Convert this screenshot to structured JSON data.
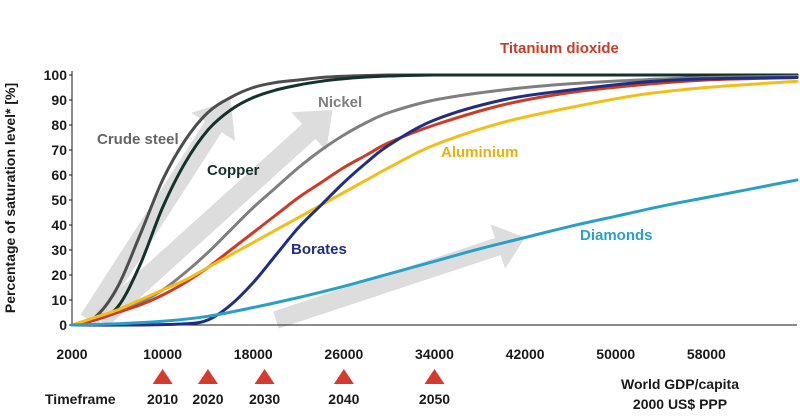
{
  "chart_data": {
    "type": "line",
    "ylabel": "Percentage of saturation level* [%]",
    "xlabel_line1": "World GDP/capita",
    "xlabel_line2": "2000 US$ PPP",
    "xlim": [
      2000,
      66000
    ],
    "ylim": [
      0,
      100
    ],
    "x_ticks": [
      2000,
      10000,
      18000,
      26000,
      34000,
      42000,
      50000,
      58000
    ],
    "y_ticks": [
      0,
      10,
      20,
      30,
      40,
      50,
      60,
      70,
      80,
      90,
      100
    ],
    "grid": false,
    "timeframe": {
      "label": "Timeframe",
      "marks": [
        {
          "year": "2010",
          "gdp": 10000
        },
        {
          "year": "2020",
          "gdp": 14000
        },
        {
          "year": "2030",
          "gdp": 19000
        },
        {
          "year": "2040",
          "gdp": 26000
        },
        {
          "year": "2050",
          "gdp": 34000
        }
      ],
      "marker_color": "#d63a2e"
    },
    "arrow_color": "#d9d9d9",
    "series": [
      {
        "name": "Crude steel",
        "color": "#4d4d4d",
        "label_color": "#666666",
        "x": [
          2000,
          4000,
          6000,
          8000,
          10000,
          12000,
          14000,
          16000,
          18000,
          20000,
          22000,
          24000,
          26000,
          28000,
          30000,
          34000,
          40000,
          50000,
          66000
        ],
        "y": [
          0,
          3,
          15,
          36,
          58,
          74,
          85,
          91,
          95,
          97,
          98,
          99,
          99.5,
          99.8,
          100,
          100,
          100,
          100,
          100
        ]
      },
      {
        "name": "Copper",
        "color": "#12332b",
        "label_color": "#12332b",
        "x": [
          2000,
          4000,
          6000,
          8000,
          10000,
          12000,
          14000,
          16000,
          18000,
          20000,
          22000,
          24000,
          26000,
          28000,
          30000,
          34000,
          40000,
          50000,
          66000
        ],
        "y": [
          0,
          2,
          7,
          24,
          47,
          65,
          78,
          86,
          91,
          94,
          96,
          97.5,
          98.5,
          99.2,
          99.6,
          100,
          100,
          100,
          100
        ]
      },
      {
        "name": "Nickel",
        "color": "#7f7f7f",
        "label_color": "#7f7f7f",
        "x": [
          2000,
          4000,
          6000,
          8000,
          10000,
          12000,
          14000,
          16000,
          18000,
          20000,
          22000,
          24000,
          26000,
          28000,
          30000,
          34000,
          40000,
          46000,
          52000,
          58000,
          66000
        ],
        "y": [
          0,
          2,
          5,
          9,
          14,
          21,
          29,
          38,
          47,
          55,
          63,
          70,
          76,
          81,
          85,
          90,
          94,
          96.5,
          98,
          99,
          99.5
        ]
      },
      {
        "name": "Titanium dioxide",
        "color": "#cc3b26",
        "label_color": "#cc3b26",
        "x": [
          2000,
          4000,
          6000,
          8000,
          10000,
          12000,
          14000,
          16000,
          18000,
          20000,
          22000,
          24000,
          26000,
          28000,
          30000,
          34000,
          40000,
          46000,
          52000,
          58000,
          66000
        ],
        "y": [
          0,
          2,
          5,
          8,
          12,
          17,
          23,
          30,
          37,
          44,
          51,
          57,
          63,
          68,
          73,
          80,
          88,
          93,
          96,
          98,
          99
        ]
      },
      {
        "name": "Aluminium",
        "color": "#f2be1a",
        "label_color": "#e8b10f",
        "x": [
          2000,
          4000,
          6000,
          8000,
          10000,
          12000,
          14000,
          16000,
          18000,
          20000,
          22000,
          24000,
          26000,
          28000,
          30000,
          34000,
          40000,
          46000,
          52000,
          58000,
          66000
        ],
        "y": [
          0,
          3,
          6,
          10,
          14,
          18,
          23,
          28,
          33,
          38,
          43,
          48,
          53,
          58,
          63,
          72,
          81,
          87,
          92,
          95,
          97.5
        ]
      },
      {
        "name": "Borates",
        "color": "#1f2f86",
        "label_color": "#1f2f86",
        "x": [
          2000,
          8000,
          12000,
          14000,
          16000,
          18000,
          20000,
          22000,
          24000,
          26000,
          28000,
          30000,
          34000,
          40000,
          46000,
          52000,
          58000,
          66000
        ],
        "y": [
          0,
          0,
          0.5,
          2,
          8,
          17,
          28,
          39,
          48,
          57,
          65,
          72,
          82,
          90,
          94,
          97,
          98.5,
          99
        ]
      },
      {
        "name": "Diamonds",
        "color": "#2aa0c8",
        "label_color": "#2aa0c8",
        "x": [
          2000,
          6000,
          10000,
          14000,
          18000,
          22000,
          26000,
          30000,
          34000,
          38000,
          42000,
          46000,
          50000,
          54000,
          58000,
          62000,
          66000
        ],
        "y": [
          0,
          0.5,
          1.5,
          3.5,
          7,
          11,
          15.5,
          20.5,
          25.5,
          30.5,
          35,
          39.5,
          43.5,
          47.5,
          51,
          54.5,
          58
        ]
      }
    ]
  }
}
